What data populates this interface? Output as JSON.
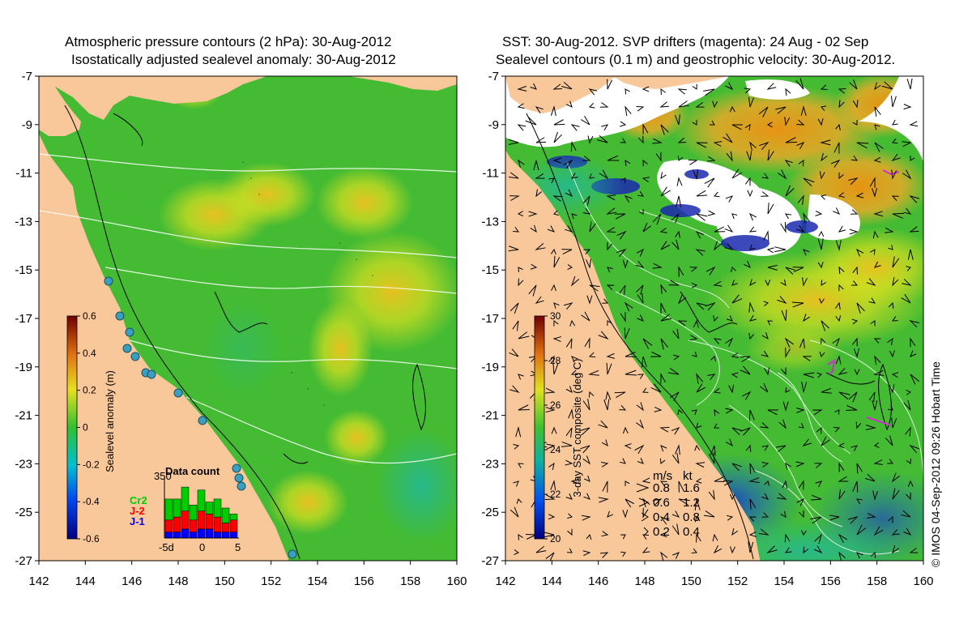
{
  "left_panel": {
    "title_line1": "Atmospheric pressure contours (2 hPa): 30-Aug-2012",
    "title_line2": "Isostatically adjusted sealevel anomaly: 30-Aug-2012",
    "colorbar_label": "Sealevel anomaly (m)",
    "colorbar_ticks": [
      "0.6",
      "0.4",
      "0.2",
      "0",
      "-0.2",
      "-0.4",
      "-0.6"
    ],
    "data_count": {
      "title": "Data count",
      "ymax_label": "350",
      "legend": [
        {
          "label": "Cr2",
          "color": "#00cc00"
        },
        {
          "label": "J-2",
          "color": "#ff0000"
        },
        {
          "label": "J-1",
          "color": "#0000ff"
        }
      ],
      "x_ticks": [
        "-5d",
        "0",
        "5"
      ],
      "bars": [
        {
          "cr2": 0.35,
          "j2": 0.2,
          "j1": 0.1
        },
        {
          "cr2": 0.3,
          "j2": 0.25,
          "j1": 0.1
        },
        {
          "cr2": 0.4,
          "j2": 0.3,
          "j1": 0.15
        },
        {
          "cr2": 0.25,
          "j2": 0.2,
          "j1": 0.1
        },
        {
          "cr2": 0.35,
          "j2": 0.3,
          "j1": 0.15
        },
        {
          "cr2": 0.2,
          "j2": 0.25,
          "j1": 0.15
        },
        {
          "cr2": 0.3,
          "j2": 0.25,
          "j1": 0.1
        },
        {
          "cr2": 0.25,
          "j2": 0.15,
          "j1": 0.1
        },
        {
          "cr2": 0.1,
          "j2": 0.2,
          "j1": 0.1
        }
      ]
    }
  },
  "right_panel": {
    "title_line1": "SST: 30-Aug-2012. SVP drifters (magenta): 24 Aug - 02 Sep",
    "title_line2": "Sealevel contours (0.1 m) and geostrophic velocity: 30-Aug-2012.",
    "colorbar_label": "3-day SST composite (deg C)",
    "colorbar_ticks": [
      "30",
      "28",
      "26",
      "24",
      "22",
      "20"
    ],
    "velocity_legend": {
      "header_ms": "m/s",
      "header_kt": "kt",
      "rows": [
        {
          "ms": "0.8",
          "kt": "1.6"
        },
        {
          "ms": "0.6",
          "kt": "1.2"
        },
        {
          "ms": "0.4",
          "kt": "0.8"
        },
        {
          "ms": "0.2",
          "kt": "0.4"
        }
      ]
    }
  },
  "axes": {
    "x_ticks": [
      "142",
      "144",
      "146",
      "148",
      "150",
      "152",
      "154",
      "156",
      "158",
      "160"
    ],
    "y_ticks": [
      "-7",
      "-9",
      "-11",
      "-13",
      "-15",
      "-17",
      "-19",
      "-21",
      "-23",
      "-25",
      "-27"
    ]
  },
  "credit": "© IMOS 04-Sep-2012 09:26 Hobart Time",
  "colors": {
    "land": "#f8c89a",
    "ocean_green": "#44bb33",
    "anomaly_yellow": "#e8d830",
    "sst_orange": "#f0a020",
    "sst_blue": "#2a66cc",
    "contour": "#ffffff",
    "drifter": "#cc33cc"
  }
}
